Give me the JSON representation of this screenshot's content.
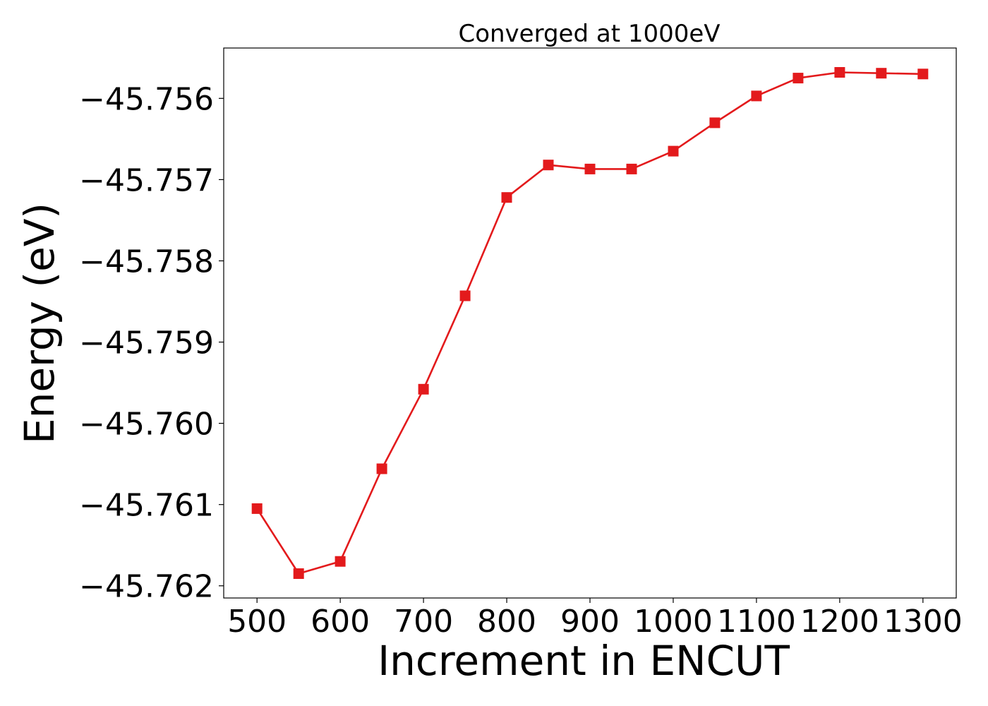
{
  "chart_data": {
    "type": "line",
    "title": "Converged at 1000eV",
    "xlabel": "Increment in ENCUT",
    "ylabel": "Energy (eV)",
    "xlim": [
      460,
      1340
    ],
    "ylim": [
      -45.76215,
      -45.75538
    ],
    "x_ticks": [
      500,
      600,
      700,
      800,
      900,
      1000,
      1100,
      1200,
      1300
    ],
    "x_tick_labels": [
      "500",
      "600",
      "700",
      "800",
      "900",
      "1000",
      "1100",
      "1200",
      "1300"
    ],
    "y_ticks": [
      -45.762,
      -45.761,
      -45.76,
      -45.759,
      -45.758,
      -45.757,
      -45.756
    ],
    "y_tick_labels": [
      "−45.762",
      "−45.761",
      "−45.760",
      "−45.759",
      "−45.758",
      "−45.757",
      "−45.756"
    ],
    "grid": false,
    "legend": "none",
    "series": [
      {
        "color": "#e31a1c",
        "marker": "square",
        "x": [
          500,
          550,
          600,
          650,
          700,
          750,
          800,
          850,
          900,
          950,
          1000,
          1050,
          1100,
          1150,
          1200,
          1250,
          1300
        ],
        "y": [
          -45.76105,
          -45.76185,
          -45.7617,
          -45.76056,
          -45.75958,
          -45.75843,
          -45.75722,
          -45.75682,
          -45.75687,
          -45.75687,
          -45.75665,
          -45.7563,
          -45.75597,
          -45.75575,
          -45.75568,
          -45.75569,
          -45.7557
        ]
      }
    ]
  }
}
